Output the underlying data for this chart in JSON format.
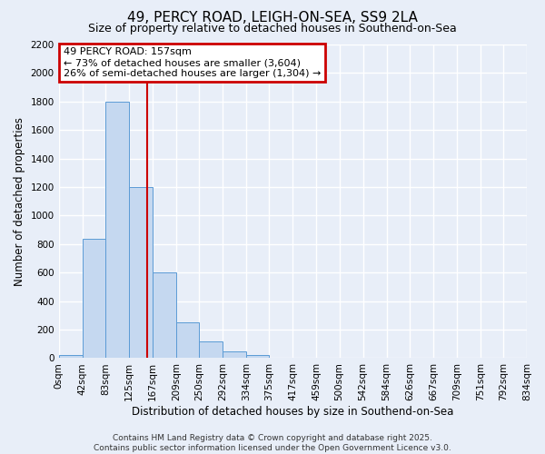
{
  "title": "49, PERCY ROAD, LEIGH-ON-SEA, SS9 2LA",
  "subtitle": "Size of property relative to detached houses in Southend-on-Sea",
  "xlabel": "Distribution of detached houses by size in Southend-on-Sea",
  "ylabel": "Number of detached properties",
  "bin_edges": [
    0,
    42,
    83,
    125,
    167,
    209,
    250,
    292,
    334,
    375,
    417,
    459,
    500,
    542,
    584,
    626,
    667,
    709,
    751,
    792,
    834
  ],
  "bar_heights": [
    25,
    840,
    1800,
    1200,
    600,
    250,
    120,
    50,
    25,
    0,
    0,
    0,
    0,
    0,
    0,
    0,
    0,
    0,
    0,
    0
  ],
  "bar_color": "#c5d8f0",
  "bar_edgecolor": "#5b9bd5",
  "property_line_x": 157,
  "property_line_color": "#cc0000",
  "ylim": [
    0,
    2200
  ],
  "annotation_title": "49 PERCY ROAD: 157sqm",
  "annotation_line1": "← 73% of detached houses are smaller (3,604)",
  "annotation_line2": "26% of semi-detached houses are larger (1,304) →",
  "annotation_box_color": "#cc0000",
  "annotation_text_color": "#000000",
  "footer_line1": "Contains HM Land Registry data © Crown copyright and database right 2025.",
  "footer_line2": "Contains public sector information licensed under the Open Government Licence v3.0.",
  "background_color": "#e8eef8",
  "grid_color": "#ffffff",
  "title_fontsize": 11,
  "subtitle_fontsize": 9,
  "axis_label_fontsize": 8.5,
  "tick_fontsize": 7.5,
  "annotation_fontsize": 8,
  "footer_fontsize": 6.5
}
